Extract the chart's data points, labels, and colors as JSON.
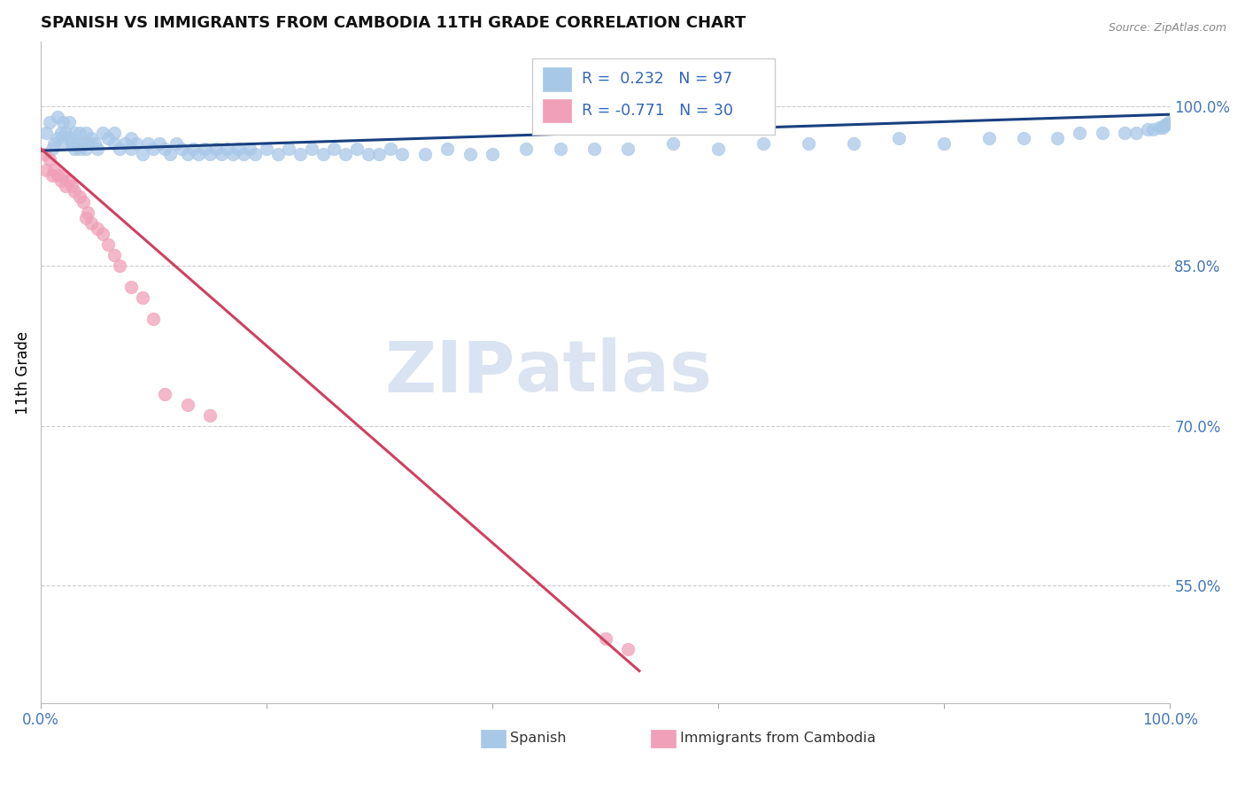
{
  "title": "SPANISH VS IMMIGRANTS FROM CAMBODIA 11TH GRADE CORRELATION CHART",
  "source": "Source: ZipAtlas.com",
  "ylabel": "11th Grade",
  "ytick_labels": [
    "100.0%",
    "85.0%",
    "70.0%",
    "55.0%"
  ],
  "ytick_values": [
    1.0,
    0.85,
    0.7,
    0.55
  ],
  "xlim": [
    0.0,
    1.0
  ],
  "ylim": [
    0.44,
    1.06
  ],
  "blue_color": "#A8C8E8",
  "pink_color": "#F0A0B8",
  "blue_line_color": "#1A4080",
  "pink_line_color": "#D04060",
  "r_blue": 0.232,
  "n_blue": 97,
  "r_pink": -0.771,
  "n_pink": 30,
  "watermark_zip": "ZIP",
  "watermark_atlas": "atlas",
  "blue_scatter_x": [
    0.005,
    0.008,
    0.01,
    0.012,
    0.015,
    0.015,
    0.018,
    0.02,
    0.02,
    0.022,
    0.025,
    0.025,
    0.028,
    0.03,
    0.03,
    0.032,
    0.035,
    0.035,
    0.038,
    0.04,
    0.04,
    0.042,
    0.045,
    0.048,
    0.05,
    0.055,
    0.06,
    0.065,
    0.065,
    0.07,
    0.075,
    0.08,
    0.08,
    0.085,
    0.09,
    0.095,
    0.1,
    0.105,
    0.11,
    0.115,
    0.12,
    0.125,
    0.13,
    0.135,
    0.14,
    0.145,
    0.15,
    0.155,
    0.16,
    0.165,
    0.17,
    0.175,
    0.18,
    0.185,
    0.19,
    0.2,
    0.21,
    0.22,
    0.23,
    0.24,
    0.25,
    0.26,
    0.27,
    0.28,
    0.29,
    0.3,
    0.31,
    0.32,
    0.34,
    0.36,
    0.38,
    0.4,
    0.43,
    0.46,
    0.49,
    0.52,
    0.56,
    0.6,
    0.64,
    0.68,
    0.72,
    0.76,
    0.8,
    0.84,
    0.87,
    0.9,
    0.92,
    0.94,
    0.96,
    0.97,
    0.98,
    0.985,
    0.99,
    0.993,
    0.995,
    0.997,
    0.999
  ],
  "blue_scatter_y": [
    0.975,
    0.985,
    0.96,
    0.965,
    0.97,
    0.99,
    0.975,
    0.965,
    0.985,
    0.975,
    0.97,
    0.985,
    0.965,
    0.96,
    0.975,
    0.965,
    0.96,
    0.975,
    0.965,
    0.96,
    0.975,
    0.965,
    0.97,
    0.965,
    0.96,
    0.975,
    0.97,
    0.965,
    0.975,
    0.96,
    0.965,
    0.97,
    0.96,
    0.965,
    0.955,
    0.965,
    0.96,
    0.965,
    0.96,
    0.955,
    0.965,
    0.96,
    0.955,
    0.96,
    0.955,
    0.96,
    0.955,
    0.96,
    0.955,
    0.96,
    0.955,
    0.96,
    0.955,
    0.96,
    0.955,
    0.96,
    0.955,
    0.96,
    0.955,
    0.96,
    0.955,
    0.96,
    0.955,
    0.96,
    0.955,
    0.955,
    0.96,
    0.955,
    0.955,
    0.96,
    0.955,
    0.955,
    0.96,
    0.96,
    0.96,
    0.96,
    0.965,
    0.96,
    0.965,
    0.965,
    0.965,
    0.97,
    0.965,
    0.97,
    0.97,
    0.97,
    0.975,
    0.975,
    0.975,
    0.975,
    0.978,
    0.978,
    0.98,
    0.98,
    0.982,
    0.983,
    0.985
  ],
  "pink_scatter_x": [
    0.003,
    0.005,
    0.008,
    0.01,
    0.012,
    0.015,
    0.018,
    0.02,
    0.022,
    0.025,
    0.028,
    0.03,
    0.035,
    0.038,
    0.04,
    0.042,
    0.045,
    0.05,
    0.055,
    0.06,
    0.065,
    0.07,
    0.08,
    0.09,
    0.1,
    0.11,
    0.13,
    0.15,
    0.5,
    0.52
  ],
  "pink_scatter_y": [
    0.955,
    0.94,
    0.95,
    0.935,
    0.94,
    0.935,
    0.93,
    0.935,
    0.925,
    0.93,
    0.925,
    0.92,
    0.915,
    0.91,
    0.895,
    0.9,
    0.89,
    0.885,
    0.88,
    0.87,
    0.86,
    0.85,
    0.83,
    0.82,
    0.8,
    0.73,
    0.72,
    0.71,
    0.5,
    0.49
  ],
  "blue_trend_x": [
    0.0,
    1.0
  ],
  "blue_trend_y": [
    0.958,
    0.992
  ],
  "pink_trend_x": [
    0.0,
    0.53
  ],
  "pink_trend_y": [
    0.96,
    0.47
  ]
}
